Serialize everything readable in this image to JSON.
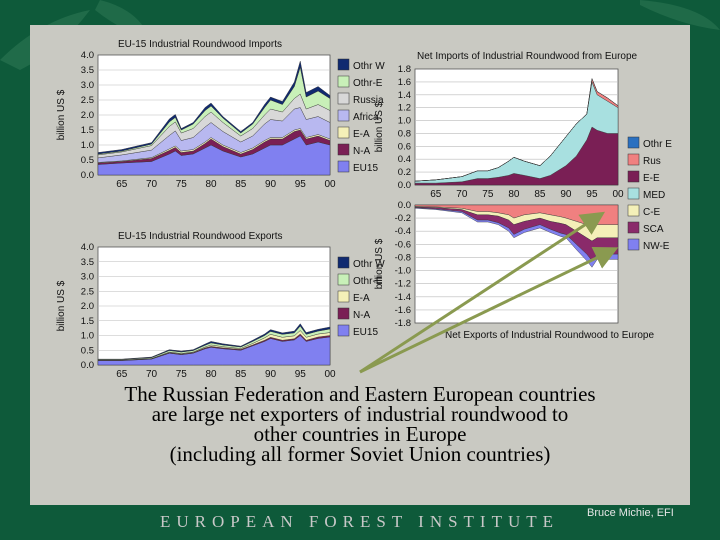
{
  "caption": {
    "line1": "The Russian Federation and Eastern European countries",
    "line2": "are large net exporters of industrial roundwood to",
    "line3": "other countries in Europe",
    "line4": "(including all former Soviet Union countries)"
  },
  "footer": {
    "institute": "EUROPEAN FOREST INSTITUTE",
    "credit": "Bruce Michie, EFI"
  },
  "colors": {
    "background": "#0e5a3a",
    "panel": "#c9c9c2",
    "arrow": "#8a9a50"
  },
  "chart_data": [
    {
      "id": "imports",
      "type": "area",
      "title": "EU-15 Industrial Roundwood Imports",
      "ylabel": "billion US $",
      "xlabel": "",
      "xlim": [
        1961,
        2000
      ],
      "ylim": [
        0,
        4
      ],
      "grid": true,
      "legend_position": "right",
      "x": [
        1961,
        1965,
        1970,
        1973,
        1974,
        1975,
        1977,
        1979,
        1980,
        1982,
        1985,
        1987,
        1989,
        1990,
        1992,
        1994,
        1995,
        1996,
        1998,
        2000
      ],
      "xticks": [
        "65",
        "70",
        "75",
        "80",
        "85",
        "90",
        "95",
        "00"
      ],
      "yticks": [
        "0.0",
        "0.5",
        "1.0",
        "1.5",
        "2.0",
        "2.5",
        "3.0",
        "3.5",
        "4.0"
      ],
      "series": [
        {
          "name": "EU15",
          "color": "#8080f0",
          "values": [
            0.35,
            0.4,
            0.45,
            0.7,
            0.8,
            0.65,
            0.7,
            0.9,
            1.0,
            0.8,
            0.6,
            0.7,
            0.9,
            1.0,
            1.0,
            1.2,
            1.3,
            1.0,
            1.1,
            1.0
          ]
        },
        {
          "name": "N-A",
          "color": "#7a1f55",
          "values": [
            0.05,
            0.05,
            0.1,
            0.12,
            0.12,
            0.1,
            0.1,
            0.15,
            0.2,
            0.15,
            0.1,
            0.15,
            0.2,
            0.2,
            0.2,
            0.25,
            0.2,
            0.2,
            0.2,
            0.15
          ]
        },
        {
          "name": "E-A",
          "color": "#f4f0b8",
          "values": [
            0.02,
            0.02,
            0.03,
            0.05,
            0.05,
            0.05,
            0.05,
            0.05,
            0.05,
            0.05,
            0.05,
            0.05,
            0.05,
            0.05,
            0.05,
            0.05,
            0.05,
            0.05,
            0.05,
            0.05
          ]
        },
        {
          "name": "Africa",
          "color": "#b8b8f0",
          "values": [
            0.15,
            0.2,
            0.25,
            0.45,
            0.5,
            0.35,
            0.4,
            0.5,
            0.5,
            0.45,
            0.35,
            0.4,
            0.55,
            0.6,
            0.55,
            0.7,
            0.7,
            0.6,
            0.6,
            0.55
          ]
        },
        {
          "name": "Russia",
          "color": "#d8d8d8",
          "values": [
            0.1,
            0.1,
            0.15,
            0.3,
            0.3,
            0.25,
            0.3,
            0.35,
            0.35,
            0.3,
            0.2,
            0.25,
            0.3,
            0.35,
            0.3,
            0.35,
            0.45,
            0.35,
            0.4,
            0.4
          ]
        },
        {
          "name": "Othr-E",
          "color": "#c8f0b8",
          "values": [
            0.03,
            0.03,
            0.05,
            0.15,
            0.15,
            0.1,
            0.15,
            0.2,
            0.2,
            0.15,
            0.1,
            0.15,
            0.25,
            0.3,
            0.25,
            0.4,
            0.9,
            0.4,
            0.45,
            0.4
          ]
        },
        {
          "name": "Othr W",
          "color": "#102a70",
          "values": [
            0.05,
            0.05,
            0.05,
            0.1,
            0.1,
            0.05,
            0.05,
            0.1,
            0.1,
            0.05,
            0.05,
            0.05,
            0.1,
            0.1,
            0.1,
            0.15,
            0.2,
            0.15,
            0.15,
            0.1
          ]
        }
      ]
    },
    {
      "id": "exports",
      "type": "area",
      "title": "EU-15 Industrial Roundwood Exports",
      "ylabel": "billion US $",
      "xlabel": "",
      "xlim": [
        1961,
        2000
      ],
      "ylim": [
        0,
        4
      ],
      "grid": true,
      "legend_position": "right",
      "x": [
        1961,
        1965,
        1970,
        1973,
        1975,
        1977,
        1979,
        1980,
        1982,
        1985,
        1987,
        1989,
        1990,
        1992,
        1994,
        1995,
        1996,
        1998,
        2000
      ],
      "xticks": [
        "65",
        "70",
        "75",
        "80",
        "85",
        "90",
        "95",
        "00"
      ],
      "yticks": [
        "0.0",
        "0.5",
        "1.0",
        "1.5",
        "2.0",
        "2.5",
        "3.0",
        "3.5",
        "4.0"
      ],
      "series": [
        {
          "name": "EU15",
          "color": "#8080f0",
          "values": [
            0.15,
            0.15,
            0.2,
            0.4,
            0.35,
            0.4,
            0.55,
            0.6,
            0.55,
            0.5,
            0.65,
            0.8,
            0.9,
            0.8,
            0.85,
            1.0,
            0.8,
            0.9,
            0.95
          ]
        },
        {
          "name": "N-A",
          "color": "#7a1f55",
          "values": [
            0.01,
            0.01,
            0.01,
            0.02,
            0.02,
            0.02,
            0.03,
            0.03,
            0.03,
            0.03,
            0.03,
            0.04,
            0.04,
            0.04,
            0.04,
            0.05,
            0.04,
            0.05,
            0.05
          ]
        },
        {
          "name": "E-A",
          "color": "#f4f0b8",
          "values": [
            0.01,
            0.01,
            0.01,
            0.02,
            0.02,
            0.02,
            0.03,
            0.05,
            0.04,
            0.03,
            0.05,
            0.08,
            0.1,
            0.1,
            0.1,
            0.12,
            0.1,
            0.1,
            0.1
          ]
        },
        {
          "name": "Othr-E",
          "color": "#c8f0b8",
          "values": [
            0.02,
            0.02,
            0.03,
            0.05,
            0.05,
            0.05,
            0.06,
            0.07,
            0.06,
            0.05,
            0.07,
            0.08,
            0.1,
            0.1,
            0.1,
            0.15,
            0.1,
            0.1,
            0.12
          ]
        },
        {
          "name": "Othr W",
          "color": "#102a70",
          "values": [
            0.01,
            0.01,
            0.02,
            0.03,
            0.03,
            0.03,
            0.04,
            0.05,
            0.04,
            0.03,
            0.04,
            0.05,
            0.06,
            0.05,
            0.06,
            0.08,
            0.06,
            0.06,
            0.07
          ]
        }
      ]
    },
    {
      "id": "net",
      "type": "area",
      "title": "Net Imports of Industrial Roundwood from Europe",
      "bottom_title": "Net Exports of Industrial Roundwood to Europe",
      "ylabel": "billion US $",
      "xlabel": "",
      "xlim": [
        1961,
        2000
      ],
      "ylim": [
        -1.8,
        1.8
      ],
      "grid": true,
      "legend_position": "right",
      "x": [
        1961,
        1965,
        1970,
        1973,
        1975,
        1977,
        1979,
        1980,
        1982,
        1985,
        1987,
        1989,
        1990,
        1992,
        1994,
        1995,
        1996,
        1998,
        2000
      ],
      "xticks": [
        "65",
        "70",
        "75",
        "80",
        "85",
        "90",
        "95",
        "00"
      ],
      "yticks_top": [
        "0.0",
        "0.2",
        "0.4",
        "0.6",
        "0.8",
        "1.0",
        "1.2",
        "1.4",
        "1.6",
        "1.8"
      ],
      "yticks_bottom": [
        "0.0",
        "-0.2",
        "-0.4",
        "-0.6",
        "-0.8",
        "-1.0",
        "-1.2",
        "-1.4",
        "-1.6",
        "-1.8"
      ],
      "positive_series": [
        {
          "name": "E-E",
          "color": "#7a1f55",
          "values": [
            0.03,
            0.03,
            0.05,
            0.1,
            0.1,
            0.12,
            0.15,
            0.18,
            0.15,
            0.1,
            0.15,
            0.25,
            0.3,
            0.45,
            0.7,
            0.9,
            0.85,
            0.8,
            0.8
          ]
        },
        {
          "name": "MED",
          "color": "#a8e0e0",
          "values": [
            0.03,
            0.05,
            0.08,
            0.12,
            0.12,
            0.15,
            0.22,
            0.25,
            0.22,
            0.2,
            0.3,
            0.4,
            0.45,
            0.5,
            0.4,
            0.7,
            0.55,
            0.5,
            0.4
          ]
        },
        {
          "name": "Rus",
          "color": "#f08080",
          "values": [
            0.0,
            0.0,
            0.0,
            0.0,
            0.0,
            0.0,
            0.0,
            0.0,
            0.0,
            0.0,
            0.0,
            0.0,
            0.0,
            0.0,
            0.0,
            0.05,
            0.05,
            0.05,
            0.03
          ]
        },
        {
          "name": "Othr E",
          "color": "#2a70c0",
          "values": [
            0.0,
            0.0,
            0.0,
            0.0,
            0.0,
            0.0,
            0.0,
            0.0,
            0.0,
            0.0,
            0.0,
            0.0,
            0.0,
            0.0,
            0.0,
            0.0,
            0.0,
            0.0,
            0.0
          ]
        }
      ],
      "negative_series": [
        {
          "name": "Rus",
          "color": "#f08080",
          "values": [
            -0.02,
            -0.03,
            -0.05,
            -0.1,
            -0.1,
            -0.12,
            -0.15,
            -0.2,
            -0.15,
            -0.12,
            -0.15,
            -0.18,
            -0.2,
            -0.25,
            -0.3,
            -0.35,
            -0.3,
            -0.3,
            -0.3
          ]
        },
        {
          "name": "C-E",
          "color": "#f4f0b8",
          "values": [
            -0.01,
            -0.01,
            -0.02,
            -0.05,
            -0.05,
            -0.05,
            -0.08,
            -0.1,
            -0.1,
            -0.08,
            -0.1,
            -0.1,
            -0.1,
            -0.15,
            -0.2,
            -0.2,
            -0.2,
            -0.2,
            -0.2
          ]
        },
        {
          "name": "SCA",
          "color": "#8a2a6a",
          "values": [
            -0.01,
            -0.02,
            -0.03,
            -0.08,
            -0.08,
            -0.1,
            -0.12,
            -0.15,
            -0.12,
            -0.1,
            -0.12,
            -0.15,
            -0.15,
            -0.2,
            -0.25,
            -0.3,
            -0.25,
            -0.25,
            -0.25
          ]
        },
        {
          "name": "NW-E",
          "color": "#8080f0",
          "values": [
            -0.01,
            -0.01,
            -0.02,
            -0.03,
            -0.03,
            -0.03,
            -0.05,
            -0.05,
            -0.05,
            -0.05,
            -0.05,
            -0.05,
            -0.05,
            -0.08,
            -0.1,
            -0.1,
            -0.08,
            -0.08,
            -0.08
          ]
        }
      ],
      "legend": [
        {
          "name": "Othr E",
          "color": "#2a70c0"
        },
        {
          "name": "Rus",
          "color": "#f08080"
        },
        {
          "name": "E-E",
          "color": "#7a1f55"
        },
        {
          "name": "MED",
          "color": "#a8e0e0"
        },
        {
          "name": "C-E",
          "color": "#f4f0b8"
        },
        {
          "name": "SCA",
          "color": "#8a2a6a"
        },
        {
          "name": "NW-E",
          "color": "#8080f0"
        }
      ]
    }
  ]
}
